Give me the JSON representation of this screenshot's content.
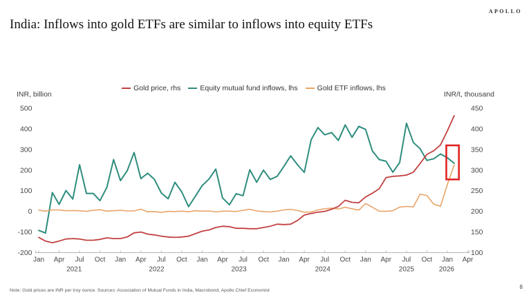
{
  "header": {
    "brand": "APOLLO",
    "title": "India: Inflows into gold ETFs are similar to inflows into equity ETFs"
  },
  "footer": {
    "note": "Note: Gold prices are INR per troy ounce. Sources: Association of Mutual Funds in India, Macrobond, Apollo Chief Economist",
    "page_number": "8"
  },
  "chart_data": {
    "type": "line",
    "title": "",
    "left_axis": {
      "label": "INR, billion",
      "ticks": [
        500,
        400,
        300,
        200,
        100,
        0,
        -100,
        -200
      ],
      "range": [
        -200,
        500
      ]
    },
    "right_axis": {
      "label": "INR/t, thousand",
      "ticks": [
        450,
        400,
        350,
        300,
        250,
        200,
        150,
        100
      ],
      "range": [
        100,
        450
      ]
    },
    "x_axis": {
      "start_month": "2021-01",
      "end_month": "2026-02",
      "n_points": 62,
      "quarter_labels_cycle": [
        "Jan",
        "Apr",
        "Jul",
        "Oct"
      ],
      "last_tick_month_index": 63,
      "year_labels": [
        {
          "label": "2021",
          "month_index": 5.2
        },
        {
          "label": "2022",
          "month_index": 17.3
        },
        {
          "label": "2023",
          "month_index": 29.4
        },
        {
          "label": "2024",
          "month_index": 41.7
        },
        {
          "label": "2025",
          "month_index": 54.0
        },
        {
          "label": "2026",
          "month_index": 59.9
        }
      ]
    },
    "legend_position": "top-center",
    "grid": false,
    "series": [
      {
        "name": "Gold price, rhs",
        "axis": "right",
        "color": "#c24040",
        "values": [
          137,
          128,
          124,
          128,
          133,
          134,
          133,
          130,
          130,
          132,
          136,
          134,
          134,
          138,
          148,
          150,
          145,
          143,
          140,
          138,
          137,
          138,
          140,
          146,
          152,
          155,
          161,
          164,
          163,
          159,
          159,
          158,
          158,
          161,
          164,
          169,
          168,
          169,
          178,
          191,
          195,
          198,
          200,
          205,
          212,
          227,
          222,
          221,
          235,
          244,
          255,
          282,
          285,
          286,
          288,
          295,
          316,
          338,
          347,
          361,
          395,
          432
        ]
      },
      {
        "name": "Equity mutual fund inflows, lhs",
        "axis": "left",
        "color": "#2d8c7d",
        "values": [
          -92,
          -105,
          91,
          34,
          101,
          60,
          226,
          87,
          87,
          52,
          116,
          251,
          149,
          197,
          285,
          159,
          185,
          155,
          89,
          61,
          141,
          94,
          23,
          73,
          125,
          157,
          205,
          65,
          32,
          86,
          76,
          202,
          141,
          200,
          155,
          170,
          218,
          269,
          226,
          189,
          347,
          406,
          371,
          382,
          344,
          419,
          359,
          412,
          397,
          293,
          251,
          243,
          190,
          236,
          427,
          334,
          304,
          247,
          255,
          278,
          260,
          233
        ]
      },
      {
        "name": "Gold ETF inflows, lhs",
        "axis": "left",
        "color": "#e9a468",
        "values": [
          6,
          1,
          7,
          7,
          3,
          4,
          3,
          0,
          5,
          8,
          1,
          3,
          5,
          2,
          2,
          11,
          -2,
          -1,
          -5,
          0,
          -1,
          1,
          -2,
          3,
          1,
          2,
          -3,
          1,
          1,
          -1,
          5,
          10,
          2,
          -1,
          -3,
          1,
          7,
          10,
          4,
          -4,
          -3,
          7,
          13,
          16,
          12,
          20,
          13,
          6,
          38,
          20,
          1,
          0,
          3,
          21,
          24,
          22,
          84,
          77,
          35,
          25,
          130,
          225
        ]
      }
    ],
    "highlight_box": {
      "note": "red rectangle highlighting convergence of gold ETF and equity inflows in Jan-Feb 2026",
      "color": "#e02424",
      "month_start": 59.85,
      "month_end": 61.7,
      "value_top_lhs": 320,
      "value_bottom_lhs": 155
    }
  }
}
